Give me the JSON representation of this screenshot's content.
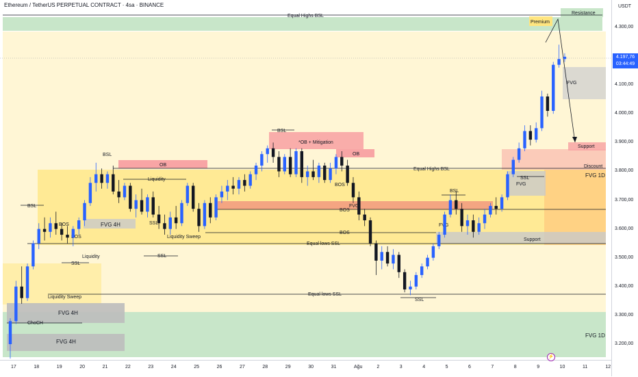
{
  "header": {
    "title": "Ethereum / TetherUS PERPETUAL CONTRACT · 4sa · BINANCE"
  },
  "axis": {
    "unit": "USDT",
    "y_ticks": [
      "4.300,00",
      "4.200,00",
      "4.100,00",
      "4.000,00",
      "3.900,00",
      "3.800,00",
      "3.700,00",
      "3.600,00",
      "3.500,00",
      "3.400,00",
      "3.300,00",
      "3.200,00"
    ],
    "x_ticks": [
      "17",
      "18",
      "19",
      "20",
      "21",
      "22",
      "23",
      "24",
      "25",
      "26",
      "27",
      "28",
      "29",
      "30",
      "31",
      "Ağu",
      "2",
      "3",
      "4",
      "5",
      "6",
      "7",
      "8",
      "9",
      "10",
      "11",
      "12"
    ]
  },
  "last_price": {
    "value": "4.197,76",
    "countdown": "03:44:49"
  },
  "colors": {
    "bull": "#2962ff",
    "bear": "#131722",
    "premium_zone": "#fff6d5",
    "fvg_yellow": "#ffe57f",
    "fvg_green": "#c8e6c9",
    "ob_red": "#f8a5a5",
    "fvg_gray": "#c9c9c9",
    "accent": "#2962ff",
    "alert": "#9c27b0"
  },
  "chart_data": {
    "type": "candlestick",
    "title": "Ethereum / TetherUS PERPETUAL CONTRACT · 4sa · BINANCE",
    "ylim": [
      3160,
      4360
    ],
    "x_range": [
      16.7,
      43.0
    ],
    "candles": [
      {
        "x": 16.85,
        "o": 3200,
        "h": 3290,
        "l": 3150,
        "c": 3280
      },
      {
        "x": 17.1,
        "o": 3280,
        "h": 3420,
        "l": 3270,
        "c": 3400
      },
      {
        "x": 17.35,
        "o": 3400,
        "h": 3470,
        "l": 3340,
        "c": 3360
      },
      {
        "x": 17.6,
        "o": 3360,
        "h": 3480,
        "l": 3350,
        "c": 3470
      },
      {
        "x": 17.85,
        "o": 3470,
        "h": 3560,
        "l": 3460,
        "c": 3550
      },
      {
        "x": 18.1,
        "o": 3550,
        "h": 3620,
        "l": 3530,
        "c": 3600
      },
      {
        "x": 18.35,
        "o": 3600,
        "h": 3640,
        "l": 3560,
        "c": 3590
      },
      {
        "x": 18.6,
        "o": 3590,
        "h": 3640,
        "l": 3570,
        "c": 3620
      },
      {
        "x": 18.85,
        "o": 3620,
        "h": 3660,
        "l": 3580,
        "c": 3600
      },
      {
        "x": 19.1,
        "o": 3600,
        "h": 3620,
        "l": 3560,
        "c": 3580
      },
      {
        "x": 19.35,
        "o": 3580,
        "h": 3610,
        "l": 3550,
        "c": 3570
      },
      {
        "x": 19.6,
        "o": 3570,
        "h": 3610,
        "l": 3540,
        "c": 3600
      },
      {
        "x": 19.85,
        "o": 3600,
        "h": 3640,
        "l": 3580,
        "c": 3630
      },
      {
        "x": 20.1,
        "o": 3630,
        "h": 3700,
        "l": 3610,
        "c": 3690
      },
      {
        "x": 20.35,
        "o": 3690,
        "h": 3780,
        "l": 3680,
        "c": 3760
      },
      {
        "x": 20.6,
        "o": 3760,
        "h": 3830,
        "l": 3730,
        "c": 3790
      },
      {
        "x": 20.85,
        "o": 3790,
        "h": 3810,
        "l": 3740,
        "c": 3760
      },
      {
        "x": 21.1,
        "o": 3760,
        "h": 3800,
        "l": 3740,
        "c": 3790
      },
      {
        "x": 21.35,
        "o": 3790,
        "h": 3820,
        "l": 3720,
        "c": 3730
      },
      {
        "x": 21.6,
        "o": 3730,
        "h": 3770,
        "l": 3690,
        "c": 3710
      },
      {
        "x": 21.85,
        "o": 3710,
        "h": 3760,
        "l": 3700,
        "c": 3750
      },
      {
        "x": 22.1,
        "o": 3750,
        "h": 3760,
        "l": 3660,
        "c": 3670
      },
      {
        "x": 22.35,
        "o": 3670,
        "h": 3720,
        "l": 3640,
        "c": 3700
      },
      {
        "x": 22.6,
        "o": 3700,
        "h": 3740,
        "l": 3650,
        "c": 3660
      },
      {
        "x": 22.85,
        "o": 3660,
        "h": 3720,
        "l": 3640,
        "c": 3710
      },
      {
        "x": 23.1,
        "o": 3710,
        "h": 3730,
        "l": 3640,
        "c": 3650
      },
      {
        "x": 23.35,
        "o": 3650,
        "h": 3680,
        "l": 3600,
        "c": 3620
      },
      {
        "x": 23.6,
        "o": 3620,
        "h": 3650,
        "l": 3580,
        "c": 3600
      },
      {
        "x": 23.85,
        "o": 3600,
        "h": 3660,
        "l": 3580,
        "c": 3640
      },
      {
        "x": 24.1,
        "o": 3640,
        "h": 3680,
        "l": 3600,
        "c": 3620
      },
      {
        "x": 24.35,
        "o": 3620,
        "h": 3700,
        "l": 3610,
        "c": 3690
      },
      {
        "x": 24.6,
        "o": 3690,
        "h": 3760,
        "l": 3680,
        "c": 3750
      },
      {
        "x": 24.85,
        "o": 3750,
        "h": 3760,
        "l": 3660,
        "c": 3670
      },
      {
        "x": 25.1,
        "o": 3670,
        "h": 3690,
        "l": 3590,
        "c": 3610
      },
      {
        "x": 25.35,
        "o": 3610,
        "h": 3700,
        "l": 3600,
        "c": 3690
      },
      {
        "x": 25.6,
        "o": 3690,
        "h": 3710,
        "l": 3620,
        "c": 3640
      },
      {
        "x": 25.85,
        "o": 3640,
        "h": 3720,
        "l": 3630,
        "c": 3710
      },
      {
        "x": 26.1,
        "o": 3710,
        "h": 3750,
        "l": 3690,
        "c": 3730
      },
      {
        "x": 26.35,
        "o": 3730,
        "h": 3770,
        "l": 3700,
        "c": 3750
      },
      {
        "x": 26.6,
        "o": 3750,
        "h": 3780,
        "l": 3720,
        "c": 3740
      },
      {
        "x": 26.85,
        "o": 3740,
        "h": 3780,
        "l": 3720,
        "c": 3770
      },
      {
        "x": 27.1,
        "o": 3770,
        "h": 3790,
        "l": 3730,
        "c": 3750
      },
      {
        "x": 27.35,
        "o": 3750,
        "h": 3800,
        "l": 3740,
        "c": 3790
      },
      {
        "x": 27.6,
        "o": 3790,
        "h": 3830,
        "l": 3770,
        "c": 3820
      },
      {
        "x": 27.85,
        "o": 3820,
        "h": 3870,
        "l": 3800,
        "c": 3860
      },
      {
        "x": 28.1,
        "o": 3860,
        "h": 3890,
        "l": 3830,
        "c": 3880
      },
      {
        "x": 28.35,
        "o": 3880,
        "h": 3900,
        "l": 3830,
        "c": 3850
      },
      {
        "x": 28.6,
        "o": 3850,
        "h": 3870,
        "l": 3780,
        "c": 3800
      },
      {
        "x": 28.85,
        "o": 3800,
        "h": 3860,
        "l": 3790,
        "c": 3850
      },
      {
        "x": 29.1,
        "o": 3850,
        "h": 3880,
        "l": 3780,
        "c": 3790
      },
      {
        "x": 29.35,
        "o": 3790,
        "h": 3880,
        "l": 3780,
        "c": 3870
      },
      {
        "x": 29.6,
        "o": 3870,
        "h": 3880,
        "l": 3760,
        "c": 3780
      },
      {
        "x": 29.85,
        "o": 3780,
        "h": 3820,
        "l": 3750,
        "c": 3800
      },
      {
        "x": 30.1,
        "o": 3800,
        "h": 3840,
        "l": 3770,
        "c": 3780
      },
      {
        "x": 30.35,
        "o": 3780,
        "h": 3830,
        "l": 3760,
        "c": 3820
      },
      {
        "x": 30.6,
        "o": 3820,
        "h": 3830,
        "l": 3760,
        "c": 3770
      },
      {
        "x": 30.85,
        "o": 3770,
        "h": 3830,
        "l": 3760,
        "c": 3810
      },
      {
        "x": 31.1,
        "o": 3810,
        "h": 3860,
        "l": 3790,
        "c": 3850
      },
      {
        "x": 31.35,
        "o": 3850,
        "h": 3870,
        "l": 3800,
        "c": 3820
      },
      {
        "x": 31.6,
        "o": 3820,
        "h": 3840,
        "l": 3750,
        "c": 3760
      },
      {
        "x": 31.85,
        "o": 3760,
        "h": 3780,
        "l": 3690,
        "c": 3710
      },
      {
        "x": 32.1,
        "o": 3710,
        "h": 3730,
        "l": 3630,
        "c": 3650
      },
      {
        "x": 32.35,
        "o": 3650,
        "h": 3670,
        "l": 3610,
        "c": 3630
      },
      {
        "x": 32.6,
        "o": 3630,
        "h": 3640,
        "l": 3540,
        "c": 3550
      },
      {
        "x": 32.85,
        "o": 3550,
        "h": 3560,
        "l": 3440,
        "c": 3490
      },
      {
        "x": 33.1,
        "o": 3490,
        "h": 3540,
        "l": 3460,
        "c": 3520
      },
      {
        "x": 33.35,
        "o": 3520,
        "h": 3540,
        "l": 3470,
        "c": 3480
      },
      {
        "x": 33.6,
        "o": 3480,
        "h": 3530,
        "l": 3460,
        "c": 3510
      },
      {
        "x": 33.85,
        "o": 3510,
        "h": 3520,
        "l": 3430,
        "c": 3450
      },
      {
        "x": 34.1,
        "o": 3450,
        "h": 3460,
        "l": 3380,
        "c": 3390
      },
      {
        "x": 34.35,
        "o": 3390,
        "h": 3420,
        "l": 3370,
        "c": 3400
      },
      {
        "x": 34.6,
        "o": 3400,
        "h": 3450,
        "l": 3390,
        "c": 3440
      },
      {
        "x": 34.85,
        "o": 3440,
        "h": 3480,
        "l": 3430,
        "c": 3470
      },
      {
        "x": 35.1,
        "o": 3470,
        "h": 3510,
        "l": 3460,
        "c": 3500
      },
      {
        "x": 35.35,
        "o": 3500,
        "h": 3550,
        "l": 3490,
        "c": 3540
      },
      {
        "x": 35.6,
        "o": 3540,
        "h": 3590,
        "l": 3530,
        "c": 3580
      },
      {
        "x": 35.85,
        "o": 3580,
        "h": 3660,
        "l": 3570,
        "c": 3650
      },
      {
        "x": 36.1,
        "o": 3650,
        "h": 3720,
        "l": 3640,
        "c": 3700
      },
      {
        "x": 36.35,
        "o": 3700,
        "h": 3730,
        "l": 3650,
        "c": 3670
      },
      {
        "x": 36.6,
        "o": 3670,
        "h": 3690,
        "l": 3590,
        "c": 3610
      },
      {
        "x": 36.85,
        "o": 3610,
        "h": 3650,
        "l": 3580,
        "c": 3630
      },
      {
        "x": 37.1,
        "o": 3630,
        "h": 3650,
        "l": 3570,
        "c": 3590
      },
      {
        "x": 37.35,
        "o": 3590,
        "h": 3640,
        "l": 3580,
        "c": 3620
      },
      {
        "x": 37.6,
        "o": 3620,
        "h": 3670,
        "l": 3600,
        "c": 3650
      },
      {
        "x": 37.85,
        "o": 3650,
        "h": 3690,
        "l": 3640,
        "c": 3680
      },
      {
        "x": 38.1,
        "o": 3680,
        "h": 3710,
        "l": 3650,
        "c": 3670
      },
      {
        "x": 38.35,
        "o": 3670,
        "h": 3720,
        "l": 3660,
        "c": 3710
      },
      {
        "x": 38.6,
        "o": 3710,
        "h": 3800,
        "l": 3700,
        "c": 3790
      },
      {
        "x": 38.85,
        "o": 3790,
        "h": 3850,
        "l": 3780,
        "c": 3840
      },
      {
        "x": 39.1,
        "o": 3840,
        "h": 3900,
        "l": 3830,
        "c": 3880
      },
      {
        "x": 39.35,
        "o": 3880,
        "h": 3960,
        "l": 3870,
        "c": 3940
      },
      {
        "x": 39.6,
        "o": 3940,
        "h": 3960,
        "l": 3890,
        "c": 3910
      },
      {
        "x": 39.85,
        "o": 3910,
        "h": 3970,
        "l": 3900,
        "c": 3950
      },
      {
        "x": 40.1,
        "o": 3950,
        "h": 4080,
        "l": 3940,
        "c": 4060
      },
      {
        "x": 40.35,
        "o": 4060,
        "h": 4070,
        "l": 3990,
        "c": 4010
      },
      {
        "x": 40.6,
        "o": 4010,
        "h": 4180,
        "l": 4000,
        "c": 4170
      },
      {
        "x": 40.85,
        "o": 4170,
        "h": 4240,
        "l": 4160,
        "c": 4190
      },
      {
        "x": 41.1,
        "o": 4190,
        "h": 4210,
        "l": 4180,
        "c": 4198
      }
    ]
  }
}
